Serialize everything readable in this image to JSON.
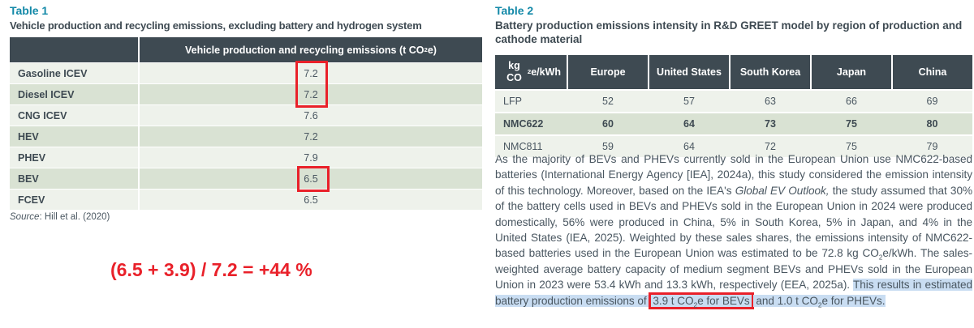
{
  "colors": {
    "accent_teal": "#1389A8",
    "annotation_red": "#E9212A",
    "table_header_bg": "#3E4A52",
    "row_light": "#EEF2EB",
    "row_dark": "#D9E2D3",
    "selection_highlight": "#C9DDF2",
    "body_text": "#4A5761"
  },
  "table1": {
    "label": "Table 1",
    "title": "Vehicle production and recycling emissions, excluding battery and hydrogen system",
    "value_header": "Vehicle production and recycling emissions (t CO₂e)",
    "rows": [
      {
        "label": "Gasoline ICEV",
        "value": "7.2"
      },
      {
        "label": "Diesel ICEV",
        "value": "7.2"
      },
      {
        "label": "CNG ICEV",
        "value": "7.6"
      },
      {
        "label": "HEV",
        "value": "7.2"
      },
      {
        "label": "PHEV",
        "value": "7.9"
      },
      {
        "label": "BEV",
        "value": "6.5"
      },
      {
        "label": "FCEV",
        "value": "6.5"
      }
    ],
    "source_label": "Source",
    "source_rest": ": Hill et al. (2020)",
    "annotation": "(6.5 + 3.9) / 7.2 = +44 %"
  },
  "table2": {
    "label": "Table 2",
    "title": "Battery production emissions intensity in R&D GREET model by region of production and cathode material",
    "columns": [
      "kg CO₂e/kWh",
      "Europe",
      "United States",
      "South Korea",
      "Japan",
      "China"
    ],
    "rows": [
      {
        "label": "LFP",
        "values": [
          "52",
          "57",
          "63",
          "66",
          "69"
        ],
        "bold": false
      },
      {
        "label": "NMC622",
        "values": [
          "60",
          "64",
          "73",
          "75",
          "80"
        ],
        "bold": true
      },
      {
        "label": "NMC811",
        "values": [
          "59",
          "64",
          "72",
          "75",
          "79"
        ],
        "bold": false
      }
    ]
  },
  "paragraph": {
    "segments": [
      {
        "text": "As the majority of BEVs and PHEVs currently sold in the European Union use NMC622-based batteries (International Energy Agency [IEA], 2024a), this study considered the emission intensity of this technology. Moreover, based on the IEA's "
      },
      {
        "text": "Global EV Outlook,",
        "italic": true
      },
      {
        "text": " the study assumed that 30% of the battery cells used in BEVs and PHEVs sold in the European Union in 2024 were produced domestically, 56% were produced in China, 5% in South Korea, 5% in Japan, and 4% in the United States (IEA, 2025). Weighted by these sales shares, the emissions intensity of NMC622-based batteries used in the European Union was estimated to be 72.8 kg CO₂e/kWh. The sales-weighted average battery capacity of medium segment BEVs and PHEVs sold in the European Union in 2023 were 53.4 kWh and 13.3 kWh, respectively (EEA, 2025a). "
      },
      {
        "text": "This results in estimated battery production emissions of ",
        "highlight": true
      },
      {
        "text": "3.9 t CO₂e for BEVs",
        "highlight": true,
        "redbox": true
      },
      {
        "text": " and 1.0 t CO₂e for PHEVs.",
        "highlight": true
      }
    ]
  },
  "chart_data": [
    {
      "type": "table",
      "title": "Vehicle production and recycling emissions, excluding battery and hydrogen system",
      "columns": [
        "",
        "Vehicle production and recycling emissions (t CO2e)"
      ],
      "rows": [
        [
          "Gasoline ICEV",
          7.2
        ],
        [
          "Diesel ICEV",
          7.2
        ],
        [
          "CNG ICEV",
          7.6
        ],
        [
          "HEV",
          7.2
        ],
        [
          "PHEV",
          7.9
        ],
        [
          "BEV",
          6.5
        ],
        [
          "FCEV",
          6.5
        ]
      ],
      "source": "Hill et al. (2020)",
      "annotation": "(6.5 + 3.9) / 7.2 = +44 %"
    },
    {
      "type": "table",
      "title": "Battery production emissions intensity in R&D GREET model by region of production and cathode material",
      "columns": [
        "kg CO2e/kWh",
        "Europe",
        "United States",
        "South Korea",
        "Japan",
        "China"
      ],
      "rows": [
        [
          "LFP",
          52,
          57,
          63,
          66,
          69
        ],
        [
          "NMC622",
          60,
          64,
          73,
          75,
          80
        ],
        [
          "NMC811",
          59,
          64,
          72,
          75,
          79
        ]
      ]
    }
  ]
}
